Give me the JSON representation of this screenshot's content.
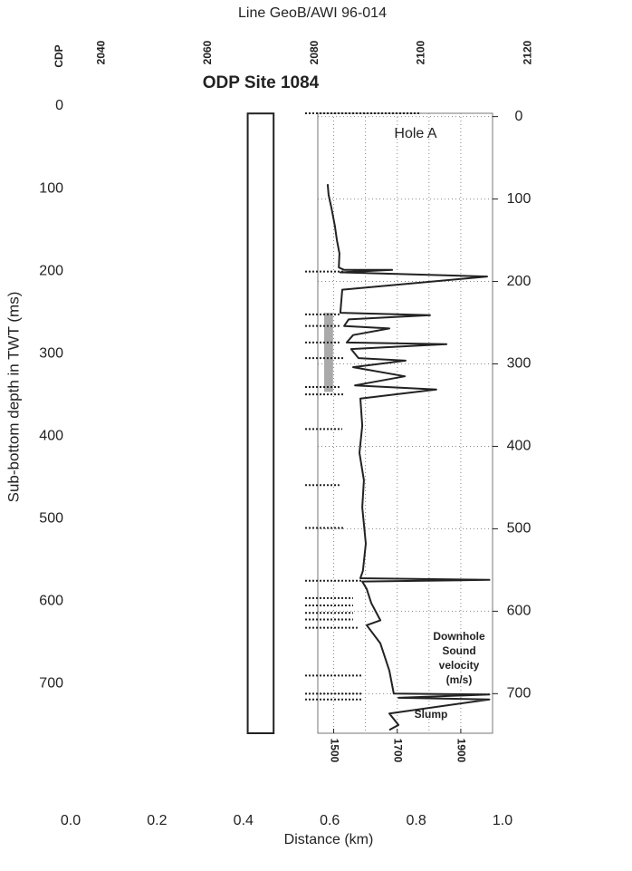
{
  "chart_data": {
    "type": "line",
    "title": "Line GeoB/AWI 96-014",
    "subtitle": "ODP Site 1084",
    "top_axis": {
      "label": "CDP",
      "xlim": [
        2034.2,
        2115.2
      ],
      "xticks": [
        2040,
        2060,
        2080,
        2100,
        2120
      ]
    },
    "xlabel": "Distance (km)",
    "xlim": [
      0,
      1
    ],
    "xticks": [
      {
        "value": 0,
        "label": "0.0"
      },
      0.2,
      0.4,
      0.6,
      0.8,
      {
        "value": 1,
        "label": "1.0"
      }
    ],
    "ylabel": "Sub-bottom depth in TWT (ms)",
    "ylim": [
      0,
      760
    ],
    "yticks": [
      0,
      100,
      200,
      300,
      400,
      500,
      600,
      700
    ],
    "y2lim": [
      -4,
      748
    ],
    "y2ticks": [
      0,
      100,
      200,
      300,
      400,
      500,
      600,
      700
    ],
    "velocity_lim": [
      1450,
      2000
    ],
    "velocity_ticks": [
      1500,
      1700,
      1900
    ],
    "velocity_grid": [
      1500,
      1600,
      1700,
      1800,
      1900
    ],
    "grid": true,
    "hole": {
      "distance": [
        0.41,
        0.47
      ],
      "twt": [
        9,
        760
      ]
    },
    "shaded_interval": {
      "depth": [
        238,
        334
      ],
      "velocity": [
        1470,
        1498
      ],
      "color": "#aaaaaa"
    },
    "reflectors": [
      {
        "depth": -4,
        "to": 1775
      },
      {
        "depth": 188,
        "to": 1533
      },
      {
        "depth": 240,
        "to": 1518
      },
      {
        "depth": 254,
        "to": 1518
      },
      {
        "depth": 274,
        "to": 1518
      },
      {
        "depth": 293,
        "to": 1533
      },
      {
        "depth": 328,
        "to": 1518
      },
      {
        "depth": 337,
        "to": 1533
      },
      {
        "depth": 379,
        "to": 1527
      },
      {
        "depth": 447,
        "to": 1518
      },
      {
        "depth": 499,
        "to": 1533
      },
      {
        "depth": 563,
        "to": 1590
      },
      {
        "depth": 584,
        "to": 1561
      },
      {
        "depth": 593,
        "to": 1561
      },
      {
        "depth": 602,
        "to": 1561
      },
      {
        "depth": 610,
        "to": 1561
      },
      {
        "depth": 620,
        "to": 1575
      },
      {
        "depth": 678,
        "to": 1590
      },
      {
        "depth": 700,
        "to": 1590
      },
      {
        "depth": 707,
        "to": 1590
      }
    ],
    "series": [
      {
        "name": "Hole A",
        "color": "#222222",
        "axis": "y2",
        "x": [
          1481,
          1484,
          1493,
          1504,
          1510,
          1518,
          1516,
          1533,
          1684,
          1521,
          1983,
          1527,
          1521,
          1803,
          1547,
          1533,
          1675,
          1561,
          1541,
          1855,
          1555,
          1578,
          1726,
          1561,
          1724,
          1567,
          1823,
          1584,
          1590,
          1581,
          1595,
          1590,
          1601,
          1592,
          1584,
          1990,
          1590,
          1604,
          1618,
          1647,
          1604,
          1647,
          1675,
          1689,
          1990,
          1704,
          1990,
          1675,
          1704,
          1675
        ],
        "values": [
          82,
          95,
          111,
          133,
          150,
          166,
          183,
          186,
          186,
          189,
          194,
          210,
          238,
          241,
          246,
          254,
          257,
          265,
          274,
          276,
          282,
          293,
          296,
          304,
          315,
          326,
          331,
          342,
          375,
          408,
          441,
          474,
          518,
          551,
          560,
          562,
          564,
          573,
          590,
          611,
          617,
          639,
          672,
          700,
          701,
          705,
          707,
          724,
          738,
          744
        ]
      }
    ],
    "velocity_label": [
      "Downhole",
      "Sound",
      "velocity",
      "(m/s)"
    ],
    "slump_label": "Slump"
  }
}
